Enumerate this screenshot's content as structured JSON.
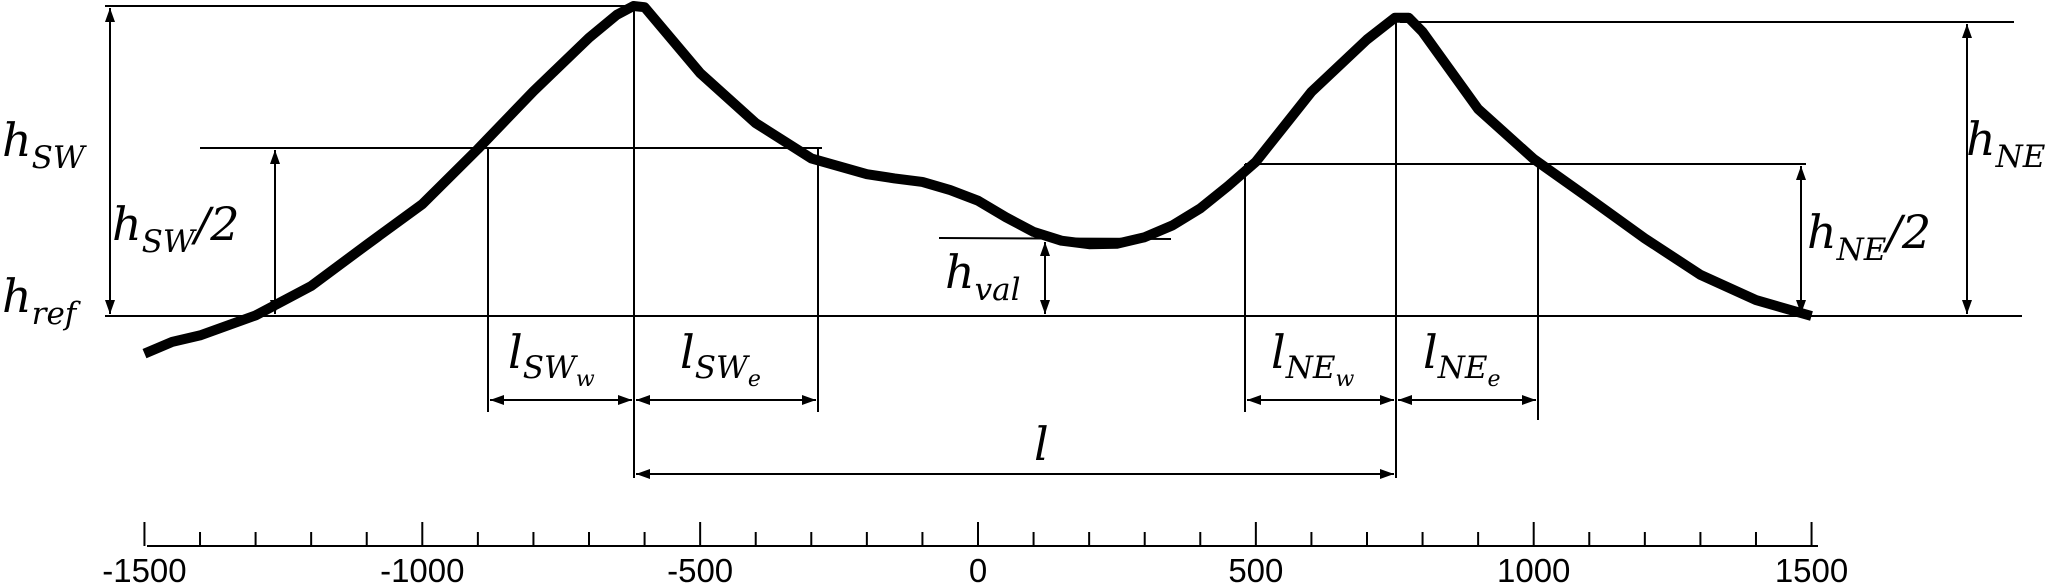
{
  "labels": {
    "h_sw": {
      "main": "h",
      "sub": "SW"
    },
    "h_sw_half": {
      "main": "h",
      "sub": "SW",
      "suffix": "/2"
    },
    "h_ref": {
      "main": "h",
      "sub": "ref"
    },
    "h_val": {
      "main": "h",
      "sub": "val"
    },
    "h_ne": {
      "main": "h",
      "sub": "NE"
    },
    "h_ne_half": {
      "main": "h",
      "sub": "NE",
      "suffix": "/2"
    },
    "l_sw_w": {
      "main": "l",
      "sub": "SW",
      "subsub": "w"
    },
    "l_sw_e": {
      "main": "l",
      "sub": "SW",
      "subsub": "e"
    },
    "l_ne_w": {
      "main": "l",
      "sub": "NE",
      "subsub": "w"
    },
    "l_ne_e": {
      "main": "l",
      "sub": "NE",
      "subsub": "e"
    },
    "l": "l"
  },
  "axis": {
    "min": -1500,
    "max": 1500,
    "major_step": 500,
    "minor_step": 100,
    "tick_labels": [
      "-1500",
      "-1000",
      "-500",
      "0",
      "500",
      "1000",
      "1500"
    ]
  },
  "profile": {
    "x": [
      -1500,
      -1450,
      -1400,
      -1300,
      -1200,
      -1100,
      -1000,
      -900,
      -800,
      -700,
      -650,
      -620,
      -600,
      -500,
      -400,
      -300,
      -200,
      -150,
      -100,
      -50,
      0,
      50,
      100,
      150,
      200,
      250,
      300,
      350,
      400,
      450,
      500,
      600,
      700,
      750,
      775,
      800,
      900,
      1000,
      1100,
      1200,
      1300,
      1400,
      1500
    ],
    "y_relative_to_href": [
      -64,
      -44,
      -33,
      1,
      51,
      121,
      190,
      284,
      382,
      473,
      512,
      527,
      525,
      413,
      328,
      268,
      241,
      234,
      228,
      214,
      196,
      168,
      143,
      128,
      122,
      123,
      134,
      154,
      183,
      221,
      262,
      381,
      470,
      507,
      507,
      483,
      352,
      267,
      200,
      132,
      70,
      27,
      0
    ],
    "h_sw": 527,
    "h_ne": 507,
    "h_val": 122,
    "sw_peak_x": -620,
    "ne_peak_x": 760,
    "valley_x": 220,
    "sw_half_width_west": -870,
    "sw_half_width_east": -290,
    "ne_half_width_west": 485,
    "ne_half_width_east": 1020
  }
}
